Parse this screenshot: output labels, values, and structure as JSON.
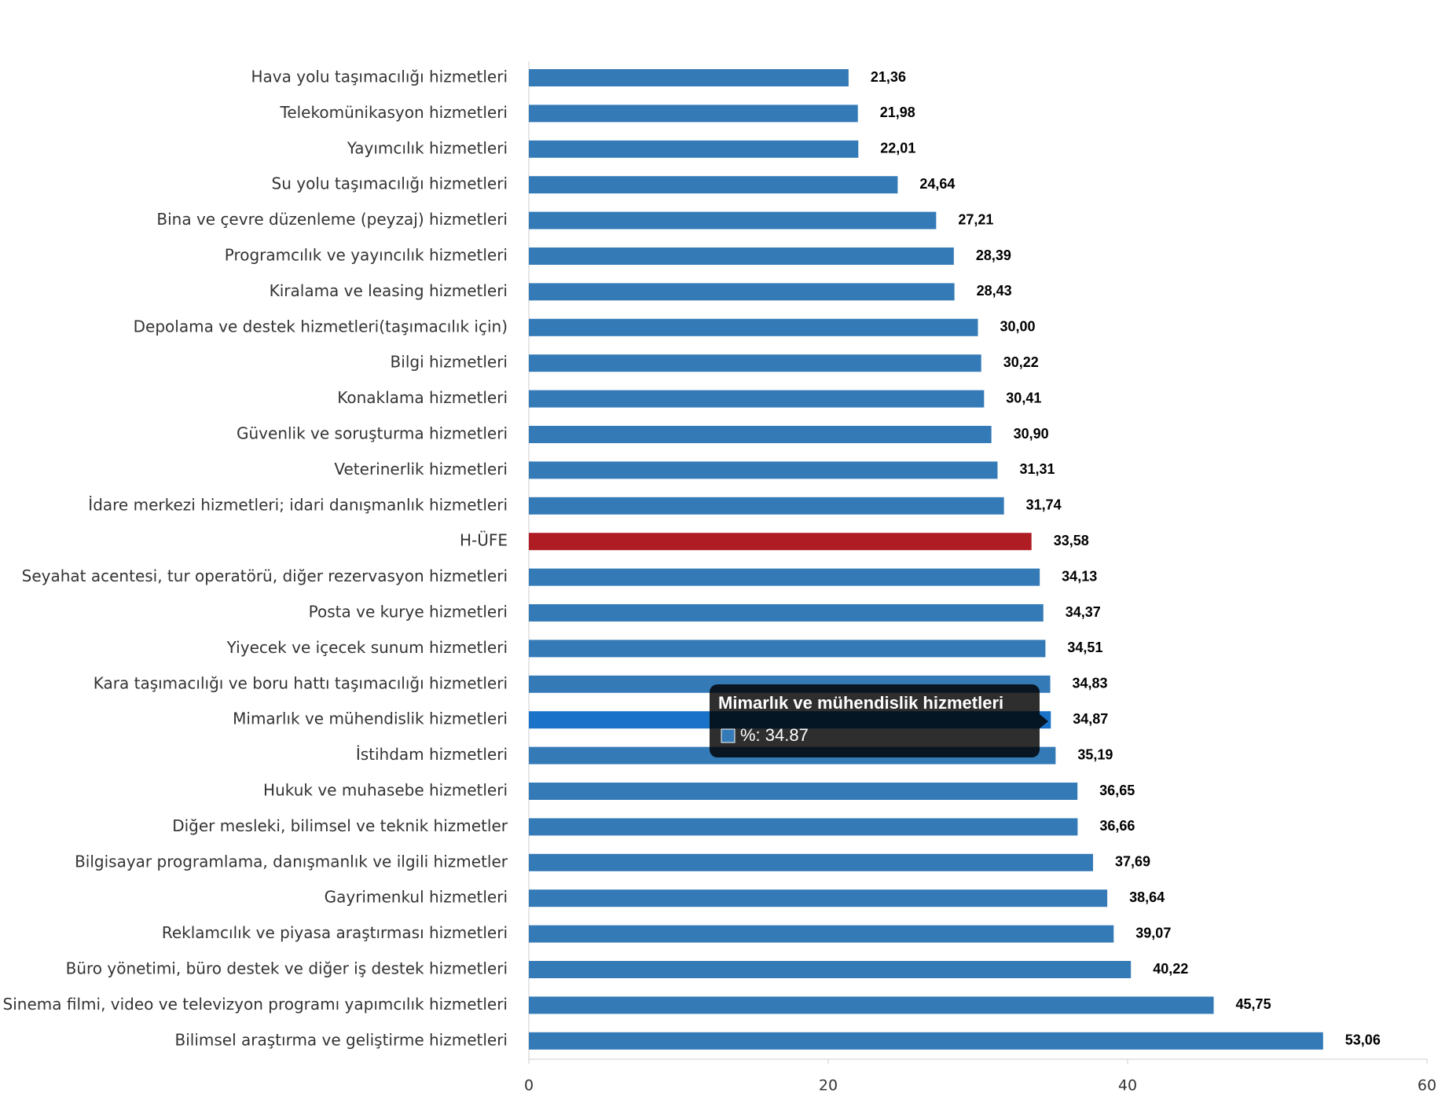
{
  "chart_data": {
    "type": "bar",
    "orientation": "horizontal",
    "categories": [
      "Hava yolu taşımacılığı hizmetleri",
      "Telekomünikasyon hizmetleri",
      "Yayımcılık hizmetleri",
      "Su yolu taşımacılığı hizmetleri",
      "Bina ve çevre düzenleme (peyzaj) hizmetleri",
      "Programcılık ve yayıncılık hizmetleri",
      "Kiralama ve leasing hizmetleri",
      "Depolama ve destek hizmetleri(taşımacılık için)",
      "Bilgi hizmetleri",
      "Konaklama hizmetleri",
      "Güvenlik ve soruşturma hizmetleri",
      "Veterinerlik hizmetleri",
      "İdare merkezi hizmetleri; idari danışmanlık hizmetleri",
      "H-ÜFE",
      "Seyahat acentesi, tur operatörü, diğer rezervasyon hizmetleri",
      "Posta ve kurye hizmetleri",
      "Yiyecek ve içecek sunum hizmetleri",
      "Kara taşımacılığı ve boru hattı taşımacılığı hizmetleri",
      "Mimarlık ve mühendislik hizmetleri",
      "İstihdam hizmetleri",
      "Hukuk ve muhasebe hizmetleri",
      "Diğer mesleki, bilimsel ve teknik hizmetler",
      "Bilgisayar programlama, danışmanlık ve ilgili hizmetler",
      "Gayrimenkul hizmetleri",
      "Reklamcılık ve piyasa araştırması hizmetleri",
      "Büro yönetimi, büro destek ve diğer iş destek hizmetleri",
      "Sinema filmi, video ve televizyon programı yapımcılık hizmetleri",
      "Bilimsel araştırma ve geliştirme hizmetleri"
    ],
    "values": [
      21.36,
      21.98,
      22.01,
      24.64,
      27.21,
      28.39,
      28.43,
      30.0,
      30.22,
      30.41,
      30.9,
      31.31,
      31.74,
      33.58,
      34.13,
      34.37,
      34.51,
      34.83,
      34.87,
      35.19,
      36.65,
      36.66,
      37.69,
      38.64,
      39.07,
      40.22,
      45.75,
      53.06
    ],
    "value_labels": [
      "21,36",
      "21,98",
      "22,01",
      "24,64",
      "27,21",
      "28,39",
      "28,43",
      "30,00",
      "30,22",
      "30,41",
      "30,90",
      "31,31",
      "31,74",
      "33,58",
      "34,13",
      "34,37",
      "34,51",
      "34,83",
      "34,87",
      "35,19",
      "36,65",
      "36,66",
      "37,69",
      "38,64",
      "39,07",
      "40,22",
      "45,75",
      "53,06"
    ],
    "colors": [
      "#337ab7",
      "#337ab7",
      "#337ab7",
      "#337ab7",
      "#337ab7",
      "#337ab7",
      "#337ab7",
      "#337ab7",
      "#337ab7",
      "#337ab7",
      "#337ab7",
      "#337ab7",
      "#337ab7",
      "#b01c24",
      "#337ab7",
      "#337ab7",
      "#337ab7",
      "#337ab7",
      "#1a73c8",
      "#337ab7",
      "#337ab7",
      "#337ab7",
      "#337ab7",
      "#337ab7",
      "#337ab7",
      "#337ab7",
      "#337ab7",
      "#337ab7"
    ],
    "xlim": [
      0,
      60
    ],
    "xticks": [
      0,
      20,
      40,
      60
    ],
    "grid": false,
    "tooltip": {
      "title": "Mimarlık ve mühendislik hizmetleri",
      "label": "%: 34.87",
      "color": "#337ab7"
    }
  }
}
